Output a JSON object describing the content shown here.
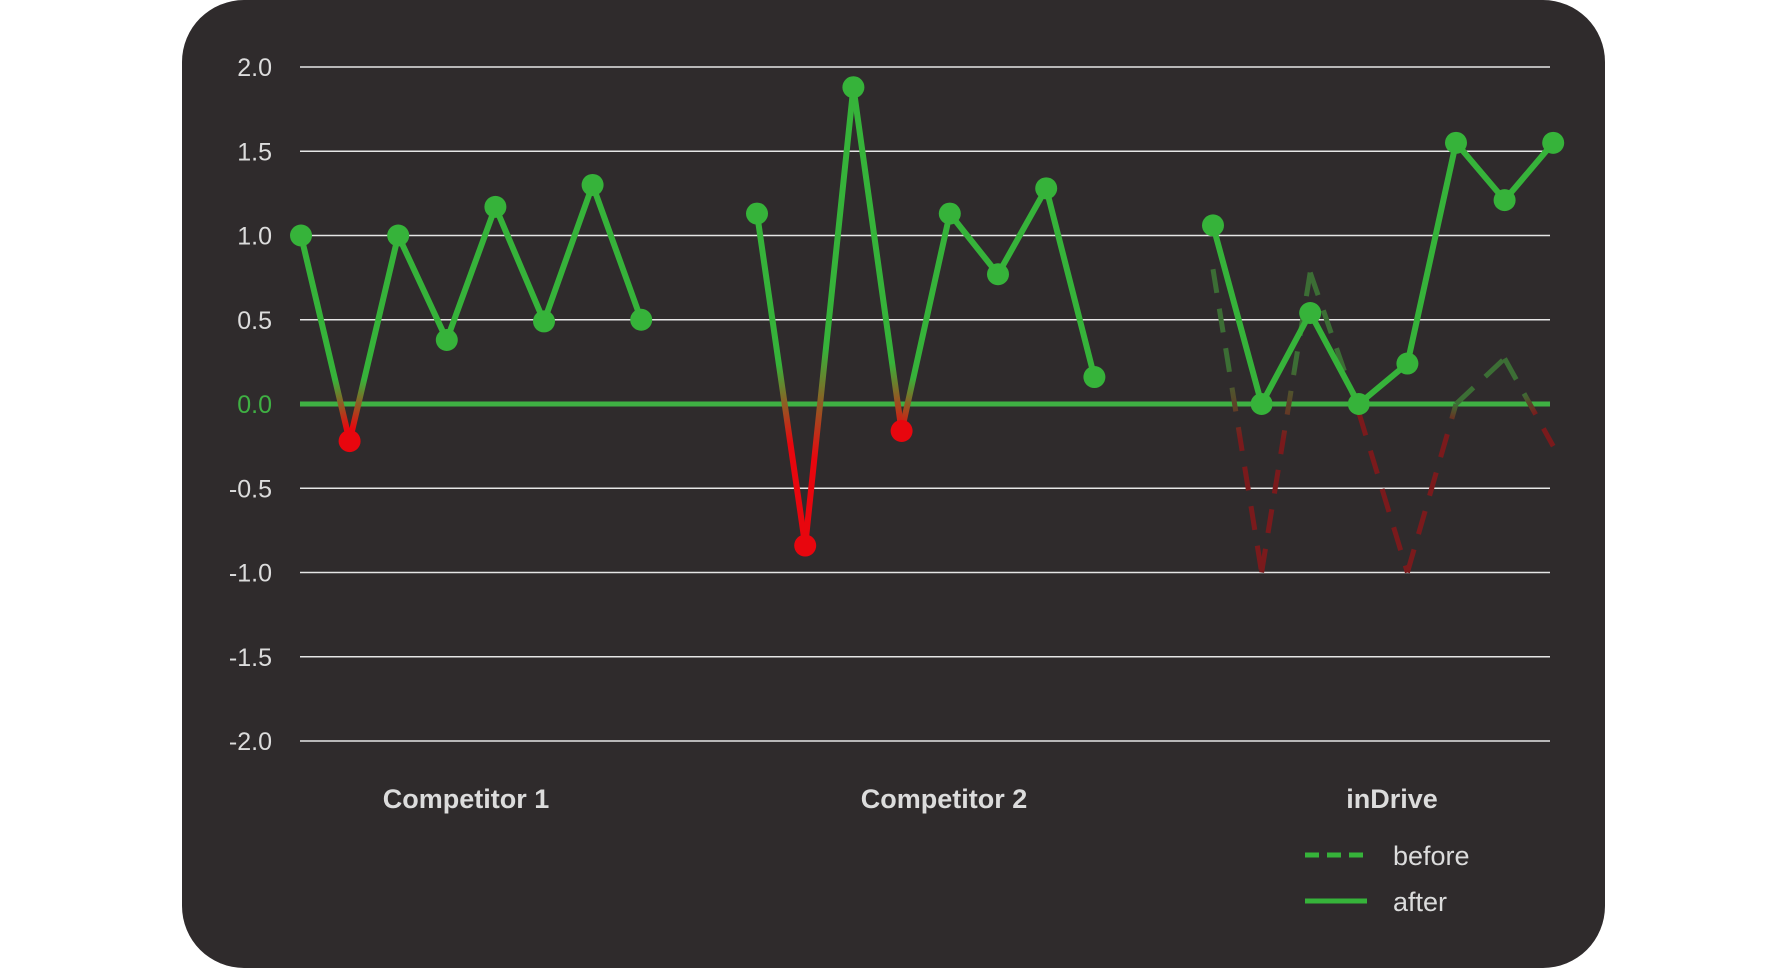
{
  "chart_data": {
    "type": "line",
    "ylim": [
      -2.0,
      2.0
    ],
    "yticks": [
      "2.0",
      "1.5",
      "1.0",
      "0.5",
      "0.0",
      "-0.5",
      "-1.0",
      "-1.5",
      "-2.0"
    ],
    "ytick_values": [
      2.0,
      1.5,
      1.0,
      0.5,
      0.0,
      -0.5,
      -1.0,
      -1.5,
      -2.0
    ],
    "grid": true,
    "legend_position": "bottom-right",
    "colors": {
      "positive": "#36b33a",
      "negative": "#e8060e",
      "before_positive": "#3c6e35",
      "before_negative": "#7a1a1c",
      "background": "#2f2b2c",
      "grid": "#e6e6e6",
      "zero_line": "#3fb043"
    },
    "groups": [
      {
        "label": "Competitor 1",
        "series": [
          {
            "style": "solid",
            "values": [
              1.0,
              -0.22,
              1.0,
              0.38,
              1.17,
              0.49,
              1.3,
              0.5
            ]
          }
        ]
      },
      {
        "label": "Competitor 2",
        "series": [
          {
            "style": "solid",
            "values": [
              1.13,
              -0.84,
              1.88,
              -0.16,
              1.13,
              0.77,
              1.28,
              0.16
            ]
          }
        ]
      },
      {
        "label": "inDrive",
        "series": [
          {
            "name": "before",
            "style": "dashed",
            "values": [
              0.8,
              -1.0,
              0.78,
              -0.05,
              -1.0,
              0.0,
              0.27,
              -0.25
            ]
          },
          {
            "name": "after",
            "style": "solid",
            "values": [
              1.06,
              0.0,
              0.54,
              0.0,
              0.24,
              1.55,
              1.21,
              1.55
            ]
          }
        ]
      }
    ],
    "legend": [
      {
        "label": "before",
        "style": "dashed"
      },
      {
        "label": "after",
        "style": "solid"
      }
    ]
  }
}
